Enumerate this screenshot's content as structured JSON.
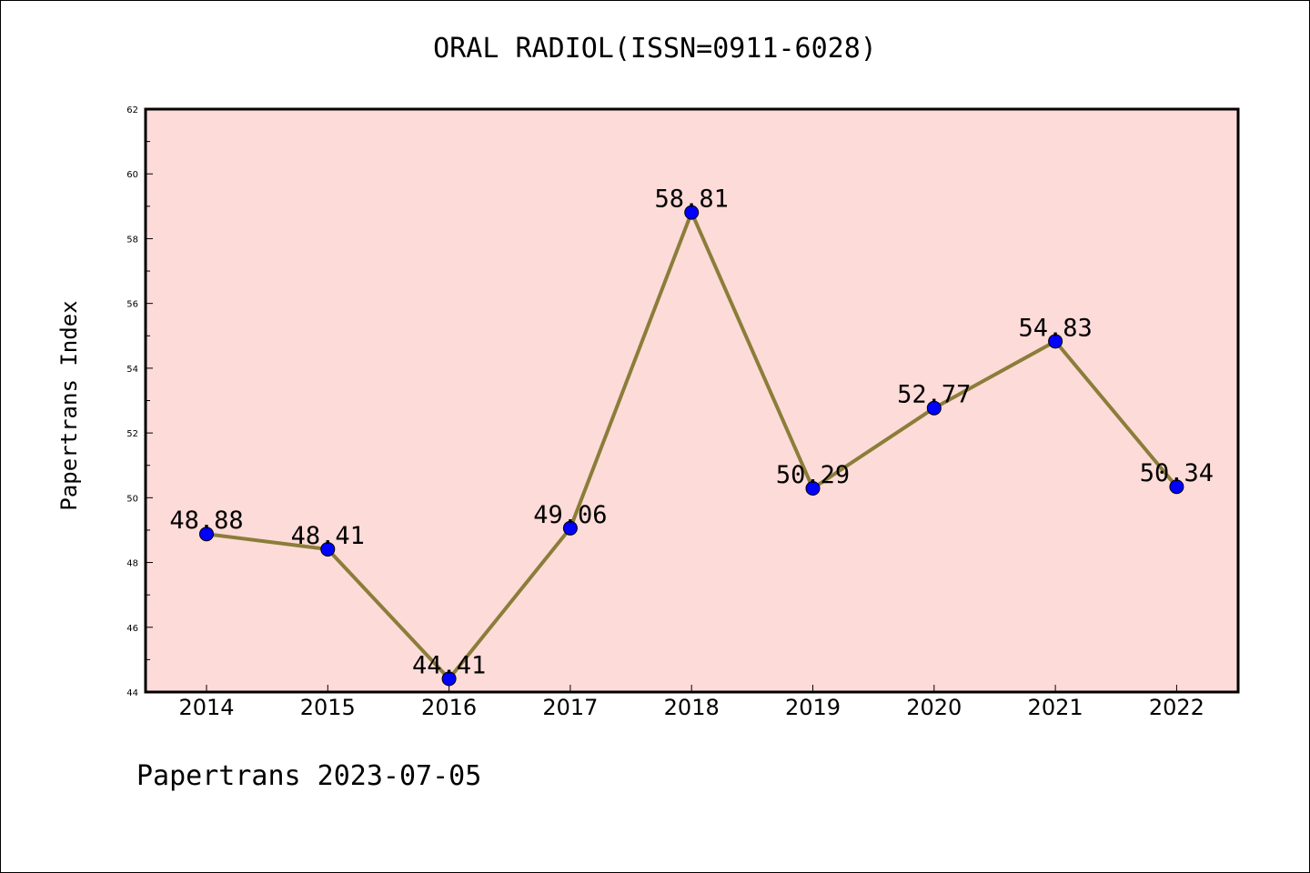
{
  "chart_data": {
    "type": "line",
    "title": "ORAL RADIOL(ISSN=0911-6028)",
    "xlabel": "",
    "ylabel": "Papertrans Index",
    "categories": [
      "2014",
      "2015",
      "2016",
      "2017",
      "2018",
      "2019",
      "2020",
      "2021",
      "2022"
    ],
    "series": [
      {
        "values": [
          48.88,
          48.41,
          44.41,
          49.06,
          58.81,
          50.29,
          52.77,
          54.83,
          50.34
        ],
        "data_labels": [
          "48.88",
          "48.41",
          "44.41",
          "49.06",
          "58.81",
          "50.29",
          "52.77",
          "54.83",
          "50.34"
        ],
        "line_color": "#8b7d3a",
        "marker_color": "#0000ff"
      }
    ],
    "ylim": [
      44,
      62
    ],
    "yticks": [
      44,
      46,
      48,
      50,
      52,
      54,
      56,
      58,
      60,
      62
    ],
    "yticks_labels": [
      "44",
      "46",
      "48",
      "50",
      "52",
      "54",
      "56",
      "58",
      "60",
      "62"
    ],
    "grid": false,
    "background_color": "#fddbd8"
  },
  "footer": "Papertrans 2023-07-05"
}
